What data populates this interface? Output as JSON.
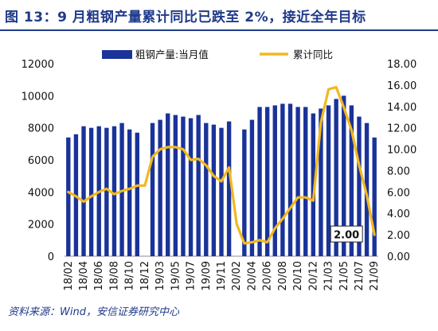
{
  "header": {
    "title": "图 13：9 月粗钢产量累计同比已跌至 2%，接近全年目标"
  },
  "footer": {
    "source": "资料来源：Wind，安信证券研究中心"
  },
  "chart_data": {
    "type": "bar+line",
    "legend": {
      "placement": "top",
      "bar_label": "粗钢产量:当月值",
      "line_label": "累计同比"
    },
    "categories": [
      "18/02",
      "18/03",
      "18/04",
      "18/05",
      "18/06",
      "18/07",
      "18/08",
      "18/09",
      "18/10",
      "18/11",
      "18/12",
      "19/02",
      "19/03",
      "19/04",
      "19/05",
      "19/06",
      "19/07",
      "19/08",
      "19/09",
      "19/10",
      "19/11",
      "19/12",
      "20/02",
      "20/03",
      "20/04",
      "20/05",
      "20/06",
      "20/07",
      "20/08",
      "20/09",
      "20/10",
      "20/11",
      "20/12",
      "21/02",
      "21/03",
      "21/04",
      "21/05",
      "21/06",
      "21/07",
      "21/08",
      "21/09"
    ],
    "x_tick_labels": [
      "18/02",
      "18/04",
      "18/06",
      "18/08",
      "18/10",
      "18/12",
      "19/03",
      "19/05",
      "19/07",
      "19/09",
      "19/11",
      "20/02",
      "20/04",
      "20/06",
      "20/08",
      "20/10",
      "20/12",
      "21/03",
      "21/05",
      "21/07",
      "21/09"
    ],
    "series": [
      {
        "name": "粗钢产量:当月值",
        "axis": "left",
        "color": "#1a3399",
        "values": [
          7400,
          7600,
          8100,
          8000,
          8100,
          8000,
          8100,
          8300,
          7900,
          7700,
          null,
          8300,
          8500,
          8900,
          8800,
          8700,
          8600,
          8800,
          8300,
          8200,
          8000,
          8400,
          null,
          7900,
          8500,
          9300,
          9300,
          9400,
          9500,
          9500,
          9300,
          9300,
          8900,
          9200,
          9400,
          9800,
          10000,
          9400,
          8700,
          8300,
          7400
        ]
      },
      {
        "name": "累计同比",
        "axis": "right",
        "color": "#f2b820",
        "values": [
          6.0,
          5.6,
          5.1,
          5.6,
          6.0,
          6.3,
          5.8,
          6.1,
          6.3,
          6.6,
          6.6,
          9.3,
          10.0,
          10.2,
          10.2,
          10.0,
          9.0,
          9.1,
          8.5,
          7.5,
          7.0,
          8.3,
          3.0,
          1.2,
          1.3,
          1.5,
          1.3,
          2.6,
          3.5,
          4.5,
          5.5,
          5.5,
          5.2,
          12.5,
          15.6,
          15.8,
          13.9,
          11.8,
          8.5,
          5.7,
          2.0
        ]
      }
    ],
    "y_left": {
      "min": 0,
      "max": 12000,
      "ticks": [
        "0",
        "2000",
        "4000",
        "6000",
        "8000",
        "10000",
        "12000"
      ]
    },
    "y_right": {
      "min": 0,
      "max": 18,
      "ticks": [
        "0.00",
        "2.00",
        "4.00",
        "6.00",
        "8.00",
        "10.00",
        "12.00",
        "14.00",
        "16.00",
        "18.00"
      ]
    },
    "grid": false,
    "annotation": {
      "label": "2.00",
      "series": "累计同比",
      "index": 40
    }
  }
}
